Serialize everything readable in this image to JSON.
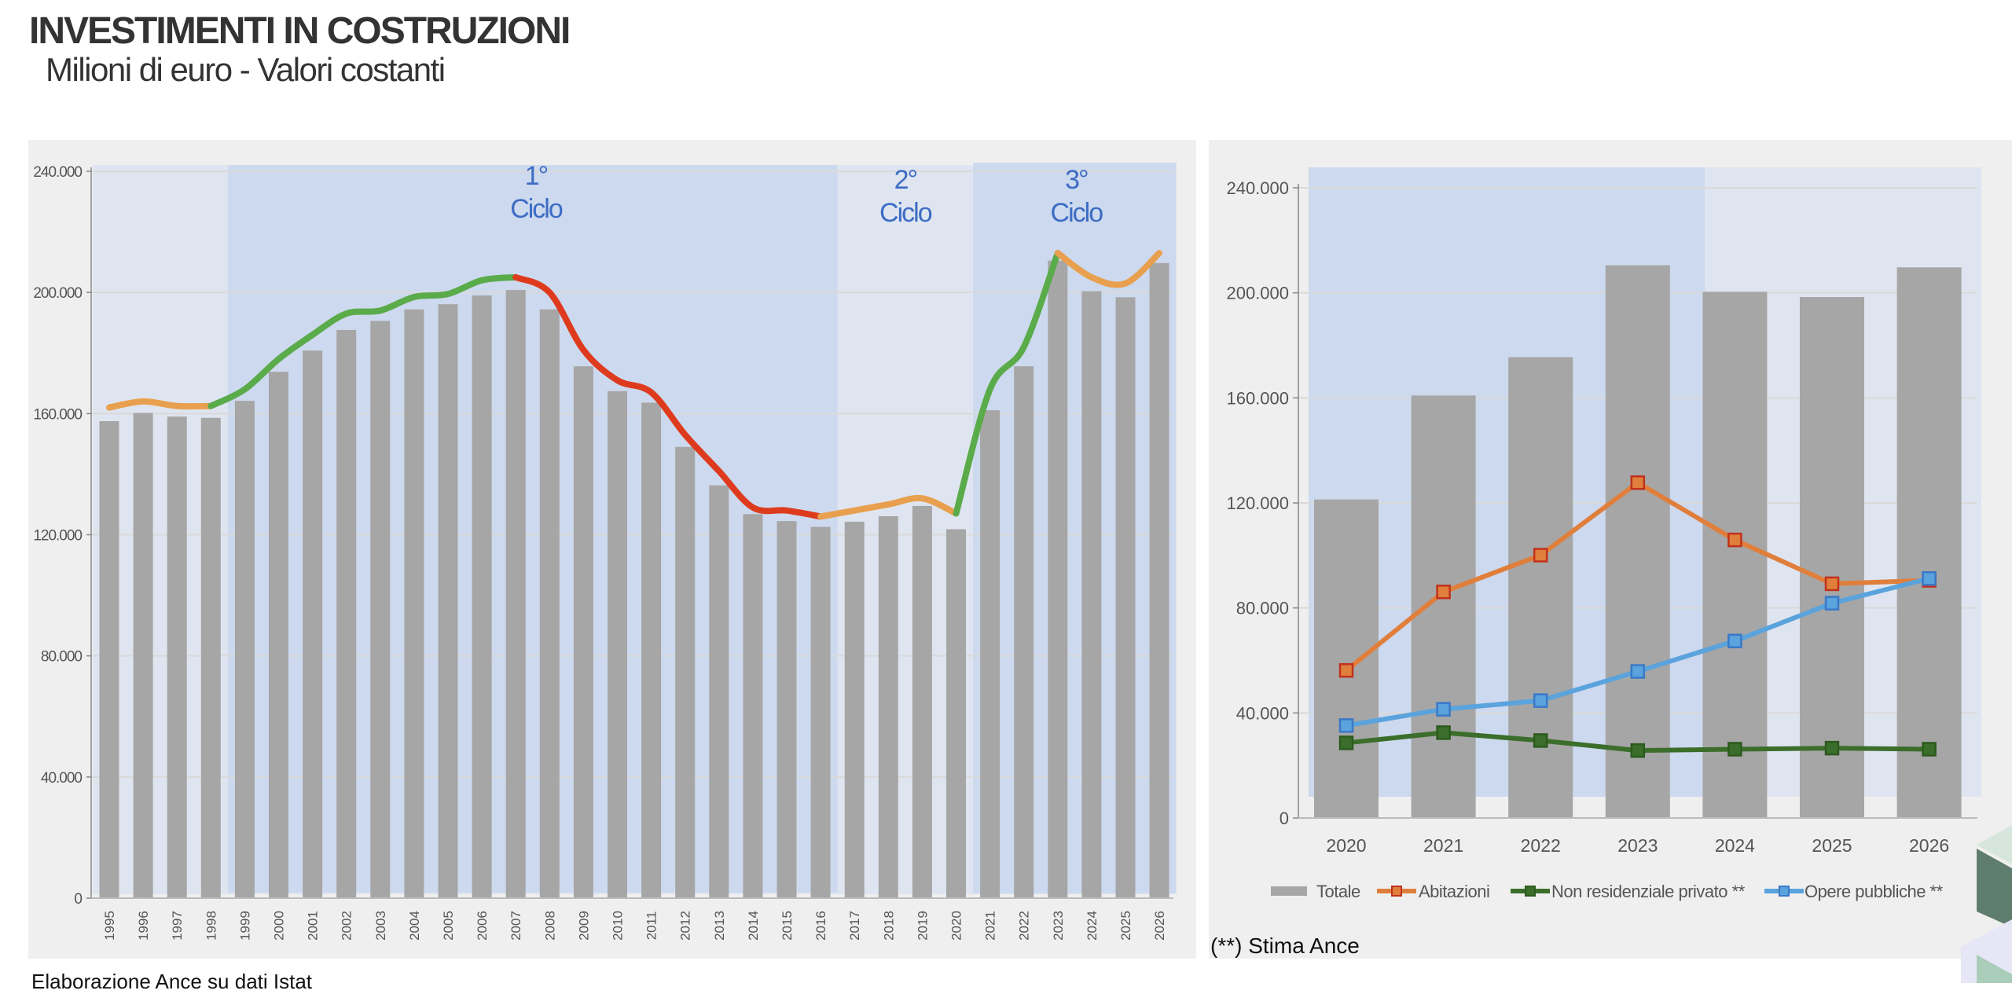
{
  "header": {
    "title": "INVESTIMENTI IN COSTRUZIONI",
    "subtitle": "Milioni di euro - Valori costanti"
  },
  "footer": {
    "source": "Elaborazione Ance su dati Istat",
    "note": "(**) Stima Ance"
  },
  "chart_data": [
    {
      "type": "bar",
      "title": "",
      "categories": [
        "1995",
        "1996",
        "1997",
        "1998",
        "1999",
        "2000",
        "2001",
        "2002",
        "2003",
        "2004",
        "2005",
        "2006",
        "2007",
        "2008",
        "2009",
        "2010",
        "2011",
        "2012",
        "2013",
        "2014",
        "2015",
        "2016",
        "2017",
        "2018",
        "2019",
        "2020",
        "2021",
        "2022",
        "2023",
        "2024",
        "2025",
        "2026"
      ],
      "values": [
        157500,
        160200,
        159000,
        158600,
        164200,
        173800,
        180800,
        187600,
        190600,
        194400,
        196100,
        199000,
        200800,
        194400,
        175600,
        167400,
        163600,
        149000,
        136300,
        126800,
        124500,
        122600,
        124300,
        126100,
        129500,
        121800,
        161100,
        175600,
        210500,
        200400,
        198400,
        209700
      ],
      "trend_line": {
        "values": [
          162000,
          164000,
          162500,
          162500,
          168000,
          178000,
          186000,
          193000,
          194000,
          198500,
          199500,
          204000,
          205000,
          200000,
          181000,
          171000,
          167000,
          153000,
          141000,
          129000,
          128000,
          126000,
          128000,
          130000,
          132000,
          127000,
          168000,
          182000,
          213000,
          205000,
          203000,
          213000
        ],
        "segments": [
          {
            "from": "1995",
            "to": "1998",
            "color": "#e8a04e"
          },
          {
            "from": "1998",
            "to": "2007",
            "color": "#5aab4a"
          },
          {
            "from": "2007",
            "to": "2016",
            "color": "#de3b1e"
          },
          {
            "from": "2016",
            "to": "2020",
            "color": "#e8a04e"
          },
          {
            "from": "2020",
            "to": "2023",
            "color": "#5aab4a"
          },
          {
            "from": "2023",
            "to": "2026",
            "color": "#e8a04e"
          }
        ]
      },
      "annotations": [
        {
          "line1": "1°",
          "line2": "Ciclo",
          "from": "1999",
          "to": "2016"
        },
        {
          "line1": "2°",
          "line2": "Ciclo",
          "from": "2017",
          "to": "2020"
        },
        {
          "line1": "3°",
          "line2": "Ciclo",
          "from": "2021",
          "to": "2026"
        }
      ],
      "ylim": [
        0,
        240000
      ],
      "yticks": [
        0,
        40000,
        80000,
        120000,
        160000,
        200000,
        240000
      ],
      "ytick_labels": [
        "0",
        "40.000",
        "80.000",
        "120.000",
        "160.000",
        "200.000",
        "240.000"
      ],
      "grid": true,
      "colors": {
        "bar": "#a6a6a6",
        "band_light": "#dfe5f0",
        "band_dark": "#cdd9ee",
        "annotation": "#3c6cc4"
      }
    },
    {
      "type": "bar+line",
      "categories": [
        "2020",
        "2021",
        "2022",
        "2023",
        "2024",
        "2025",
        "2026"
      ],
      "series": [
        {
          "name": "Totale",
          "type": "bar",
          "color": "#a6a6a6",
          "values": [
            121300,
            160900,
            175500,
            210500,
            200400,
            198400,
            209700
          ]
        },
        {
          "name": "Abitazioni",
          "type": "line",
          "color": "#e07f3c",
          "marker_edge": "#c0311c",
          "values": [
            56200,
            86100,
            100100,
            127700,
            105900,
            89200,
            90500
          ]
        },
        {
          "name": "Non residenziale privato **",
          "type": "line",
          "color": "#3b6e2a",
          "marker_edge": "#2c5a1e",
          "values": [
            28600,
            32500,
            29500,
            25700,
            26200,
            26600,
            26200
          ]
        },
        {
          "name": "Opere pubbliche **",
          "type": "line",
          "color": "#5aa3dc",
          "marker_edge": "#3a78c8",
          "values": [
            35200,
            41400,
            44700,
            55800,
            67400,
            81800,
            91200
          ]
        }
      ],
      "ylim": [
        0,
        240000
      ],
      "yticks": [
        0,
        40000,
        80000,
        120000,
        160000,
        200000,
        240000
      ],
      "ytick_labels": [
        "0",
        "40.000",
        "80.000",
        "120.000",
        "160.000",
        "200.000",
        "240.000"
      ],
      "grid": true,
      "legend": "bottom"
    }
  ]
}
